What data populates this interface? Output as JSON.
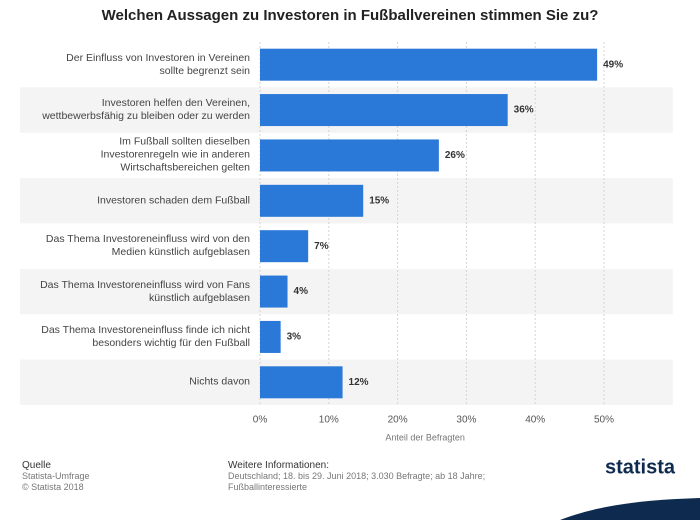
{
  "chart_data": {
    "type": "barh",
    "title": "Welchen Aussagen zu Investoren in Fußballvereinen stimmen Sie zu?",
    "categories": [
      "Der Einfluss von Investoren in Vereinen sollte begrenzt sein",
      "Investoren helfen den Vereinen, wettbewerbsfähig zu bleiben oder zu werden",
      "Im Fußball sollten dieselben Investorenregeln wie in anderen Wirtschaftsbereichen gelten",
      "Investoren schaden dem Fußball",
      "Das Thema Investoreneinfluss wird von den Medien künstlich aufgeblasen",
      "Das Thema Investoreneinfluss wird von Fans künstlich aufgeblasen",
      "Das Thema Investoreneinfluss finde ich nicht besonders wichtig für den Fußball",
      "Nichts davon"
    ],
    "values": [
      49,
      36,
      26,
      15,
      7,
      4,
      3,
      12
    ],
    "value_labels": [
      "49%",
      "36%",
      "26%",
      "15%",
      "7%",
      "4%",
      "3%",
      "12%"
    ],
    "color": "#2a78d8",
    "xlabel": "Anteil der Befragten",
    "xlim": [
      0,
      60
    ],
    "xticks": [
      {
        "value": 0,
        "label": "0%"
      },
      {
        "value": 10,
        "label": "10%"
      },
      {
        "value": 20,
        "label": "20%"
      },
      {
        "value": 30,
        "label": "30%"
      },
      {
        "value": 40,
        "label": "40%"
      },
      {
        "value": 50,
        "label": "50%"
      }
    ],
    "grid": true
  },
  "footer": {
    "source_title": "Quelle",
    "source": "Statista-Umfrage",
    "copyright": "© Statista 2018",
    "info_title": "Weitere Informationen:",
    "info_lines": [
      "Deutschland; 18. bis 29. Juni 2018; 3.030 Befragte; ab 18 Jahre;",
      "Fußballinteressierte"
    ],
    "logo": "statista"
  }
}
